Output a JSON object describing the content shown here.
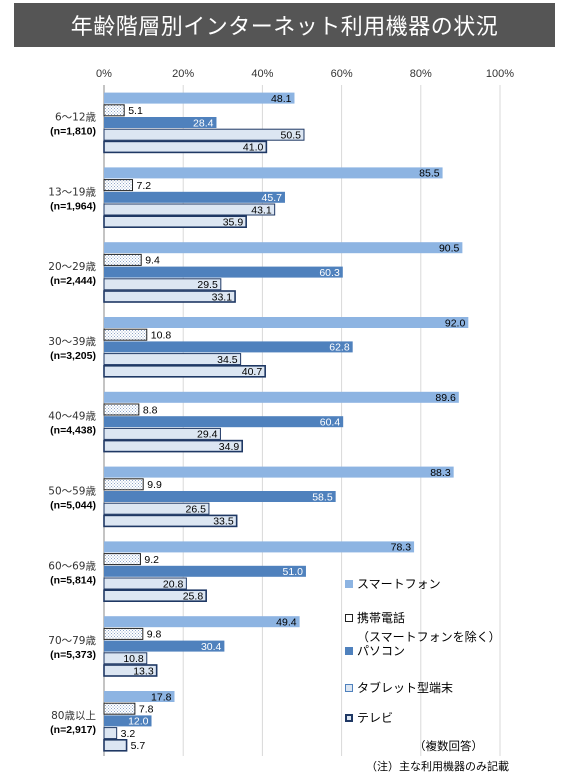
{
  "title": "年齢階層別インターネット利用機器の状況",
  "colors": {
    "smartphone": "#8DB4E2",
    "mobile": "#FFFFFF",
    "pc": "#4F81BD",
    "tablet": "#DCE6F2",
    "tv": "#DCE6F2",
    "title_bg": "#555555"
  },
  "legend": {
    "smartphone": "スマートフォン",
    "mobile": "携帯電話",
    "mobile_sub": "（スマートフォンを除く）",
    "pc": "パソコン",
    "tablet": "タブレット型端末",
    "tv": "テレビ"
  },
  "notes": {
    "multiple": "（複数回答）",
    "main": "（注）主な利用機器のみ記載"
  },
  "chart_data": {
    "type": "bar",
    "orientation": "horizontal",
    "xlim": [
      0,
      100
    ],
    "x_ticks": [
      "0%",
      "20%",
      "40%",
      "60%",
      "80%",
      "100%"
    ],
    "grid": true,
    "legend_position": "right",
    "categories": [
      {
        "age": "6～12歳",
        "n": "(n=1,810)"
      },
      {
        "age": "13～19歳",
        "n": "(n=1,964)"
      },
      {
        "age": "20～29歳",
        "n": "(n=2,444)"
      },
      {
        "age": "30～39歳",
        "n": "(n=3,205)"
      },
      {
        "age": "40～49歳",
        "n": "(n=4,438)"
      },
      {
        "age": "50～59歳",
        "n": "(n=5,044)"
      },
      {
        "age": "60～69歳",
        "n": "(n=5,814)"
      },
      {
        "age": "70～79歳",
        "n": "(n=5,373)"
      },
      {
        "age": "80歳以上",
        "n": "(n=2,917)"
      }
    ],
    "series": [
      {
        "name": "スマートフォン",
        "key": "smartphone",
        "values": [
          48.1,
          85.5,
          90.5,
          92.0,
          89.6,
          88.3,
          78.3,
          49.4,
          17.8
        ]
      },
      {
        "name": "携帯電話（スマートフォンを除く）",
        "key": "mobile",
        "values": [
          5.1,
          7.2,
          9.4,
          10.8,
          8.8,
          9.9,
          9.2,
          9.8,
          7.8
        ]
      },
      {
        "name": "パソコン",
        "key": "pc",
        "values": [
          28.4,
          45.7,
          60.3,
          62.8,
          60.4,
          58.5,
          51.0,
          30.4,
          12.0
        ]
      },
      {
        "name": "タブレット型端末",
        "key": "tablet",
        "values": [
          50.5,
          43.1,
          29.5,
          34.5,
          29.4,
          26.5,
          20.8,
          10.8,
          3.2
        ]
      },
      {
        "name": "テレビ",
        "key": "tv",
        "values": [
          41.0,
          35.9,
          33.1,
          40.7,
          34.9,
          33.5,
          25.8,
          13.3,
          5.7
        ]
      }
    ]
  }
}
